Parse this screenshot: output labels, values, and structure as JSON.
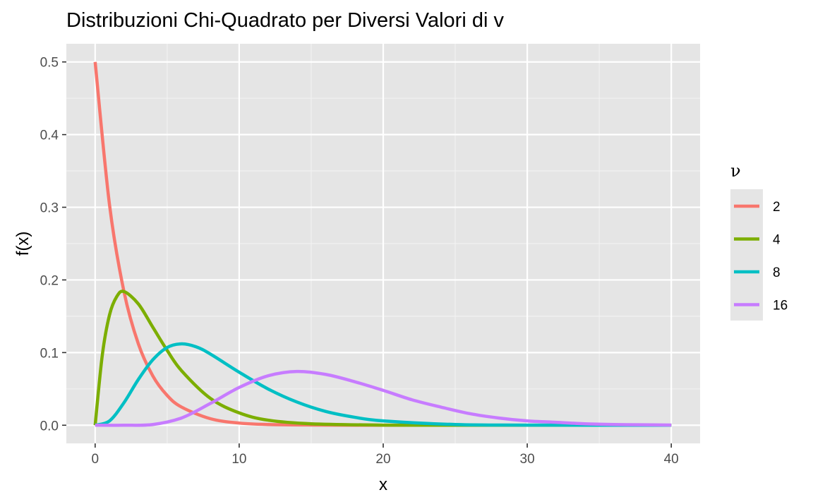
{
  "chart_data": {
    "type": "line",
    "title": "Distribuzioni Chi-Quadrato per Diversi Valori di v",
    "xlabel": "x",
    "ylabel": "f(x)",
    "xlim": [
      -2,
      42
    ],
    "ylim": [
      -0.025,
      0.525
    ],
    "x_ticks": [
      0,
      10,
      20,
      30,
      40
    ],
    "x_tick_labels": [
      "0",
      "10",
      "20",
      "30",
      "40"
    ],
    "y_ticks": [
      0.0,
      0.1,
      0.2,
      0.3,
      0.4,
      0.5
    ],
    "y_tick_labels": [
      "0.0",
      "0.1",
      "0.2",
      "0.3",
      "0.4",
      "0.5"
    ],
    "grid": true,
    "legend": {
      "title": "ν",
      "position": "right"
    },
    "series": [
      {
        "name": "2",
        "color": "#F8766D",
        "x": [
          0,
          1,
          2,
          3,
          4,
          5,
          6,
          8,
          10,
          12,
          15,
          20,
          25,
          30,
          35,
          40
        ],
        "y": [
          0.5,
          0.303,
          0.184,
          0.112,
          0.068,
          0.041,
          0.025,
          0.009,
          0.003,
          0.001,
          0.0003,
          0.0,
          0.0,
          0.0,
          0.0,
          0.0
        ]
      },
      {
        "name": "4",
        "color": "#7CAE00",
        "x": [
          0,
          0.5,
          1,
          1.5,
          2,
          3,
          4,
          5,
          6,
          8,
          10,
          12,
          15,
          20,
          25,
          30,
          40
        ],
        "y": [
          0.0,
          0.097,
          0.152,
          0.177,
          0.184,
          0.167,
          0.135,
          0.103,
          0.075,
          0.037,
          0.017,
          0.007,
          0.002,
          0.0002,
          0.0,
          0.0,
          0.0
        ]
      },
      {
        "name": "8",
        "color": "#00BFC4",
        "x": [
          0,
          1,
          2,
          3,
          4,
          5,
          6,
          7,
          8,
          10,
          12,
          14,
          16,
          18,
          20,
          25,
          30,
          40
        ],
        "y": [
          0.0,
          0.006,
          0.031,
          0.063,
          0.09,
          0.107,
          0.112,
          0.108,
          0.098,
          0.073,
          0.05,
          0.032,
          0.019,
          0.011,
          0.006,
          0.001,
          0.0002,
          0.0
        ]
      },
      {
        "name": "16",
        "color": "#C77CFF",
        "x": [
          0,
          2,
          4,
          6,
          8,
          10,
          12,
          14,
          16,
          18,
          20,
          22,
          24,
          26,
          28,
          30,
          32,
          34,
          36,
          38,
          40
        ],
        "y": [
          0.0,
          0.0,
          0.001,
          0.01,
          0.03,
          0.052,
          0.068,
          0.074,
          0.07,
          0.06,
          0.048,
          0.035,
          0.025,
          0.016,
          0.01,
          0.006,
          0.004,
          0.002,
          0.001,
          0.0006,
          0.0003
        ]
      }
    ]
  }
}
